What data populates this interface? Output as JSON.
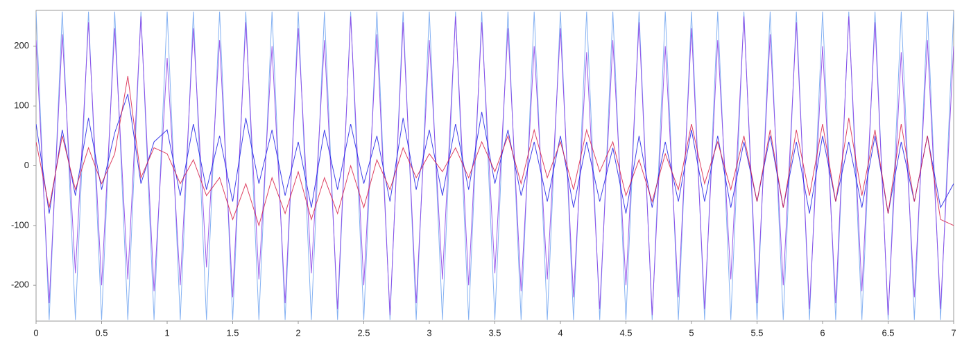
{
  "chart_data": {
    "type": "line",
    "x": [
      0,
      0.1,
      0.2,
      0.3,
      0.4,
      0.5,
      0.6,
      0.7,
      0.8,
      0.9,
      1,
      1.1,
      1.2,
      1.3,
      1.4,
      1.5,
      1.6,
      1.7,
      1.8,
      1.9,
      2,
      2.1,
      2.2,
      2.3,
      2.4,
      2.5,
      2.6,
      2.7,
      2.8,
      2.9,
      3,
      3.1,
      3.2,
      3.3,
      3.4,
      3.5,
      3.6,
      3.7,
      3.8,
      3.9,
      4,
      4.1,
      4.2,
      4.3,
      4.4,
      4.5,
      4.6,
      4.7,
      4.8,
      4.9,
      5,
      5.1,
      5.2,
      5.3,
      5.4,
      5.5,
      5.6,
      5.7,
      5.8,
      5.9,
      6,
      6.1,
      6.2,
      6.3,
      6.4,
      6.5,
      6.6,
      6.7,
      6.8,
      6.9,
      7
    ],
    "series": [
      {
        "color": "#6fa3f0",
        "values": [
          258,
          -258,
          258,
          -258,
          258,
          -258,
          258,
          -258,
          258,
          -258,
          258,
          -258,
          258,
          -258,
          258,
          -258,
          258,
          -258,
          258,
          -258,
          258,
          -258,
          258,
          -258,
          258,
          -258,
          258,
          -258,
          258,
          -258,
          258,
          -258,
          258,
          -258,
          258,
          -258,
          258,
          -258,
          258,
          -258,
          258,
          -258,
          258,
          -258,
          258,
          -258,
          258,
          -258,
          258,
          -258,
          258,
          -258,
          258,
          -258,
          258,
          -258,
          258,
          -258,
          258,
          -258,
          258,
          -258,
          258,
          -258,
          258,
          -258,
          258,
          -258,
          258,
          -258,
          258
        ]
      },
      {
        "color": "#8a3ce6",
        "values": [
          210,
          -230,
          220,
          -180,
          240,
          -200,
          230,
          -190,
          250,
          -210,
          180,
          -200,
          230,
          -170,
          210,
          -220,
          240,
          -190,
          200,
          -230,
          230,
          -180,
          210,
          -240,
          250,
          -200,
          220,
          -250,
          240,
          -230,
          210,
          -190,
          250,
          -200,
          240,
          -180,
          230,
          -210,
          200,
          -190,
          230,
          -220,
          190,
          -240,
          210,
          -200,
          240,
          -250,
          200,
          -220,
          230,
          -240,
          210,
          -190,
          250,
          -230,
          220,
          -200,
          240,
          -240,
          200,
          -230,
          250,
          -210,
          240,
          -250,
          190,
          -220,
          210,
          -240,
          200
        ]
      },
      {
        "color": "#1e1ee6",
        "values": [
          70,
          -80,
          60,
          -50,
          80,
          -40,
          55,
          120,
          -30,
          40,
          60,
          -50,
          70,
          -40,
          50,
          -60,
          80,
          -30,
          60,
          -50,
          40,
          -70,
          60,
          -40,
          70,
          -30,
          50,
          -60,
          80,
          -40,
          60,
          -50,
          70,
          -40,
          90,
          -30,
          60,
          -50,
          40,
          -60,
          50,
          -70,
          40,
          -60,
          30,
          -80,
          50,
          -70,
          40,
          -60,
          60,
          -60,
          50,
          -70,
          40,
          -60,
          50,
          -70,
          40,
          -80,
          50,
          -60,
          40,
          -70,
          50,
          -80,
          40,
          -60,
          50,
          -70,
          -30
        ]
      },
      {
        "color": "#d81e46",
        "values": [
          40,
          -70,
          50,
          -40,
          30,
          -30,
          20,
          150,
          -20,
          30,
          20,
          -30,
          10,
          -50,
          -20,
          -90,
          -30,
          -100,
          -20,
          -80,
          -10,
          -90,
          -20,
          -80,
          0,
          -70,
          10,
          -40,
          30,
          -20,
          20,
          -10,
          30,
          -20,
          40,
          -10,
          50,
          -30,
          60,
          -20,
          40,
          -40,
          60,
          -10,
          40,
          -50,
          10,
          -60,
          20,
          -40,
          70,
          -30,
          40,
          -40,
          50,
          -60,
          60,
          -70,
          60,
          -50,
          70,
          -60,
          80,
          -50,
          60,
          -80,
          70,
          -60,
          50,
          -90,
          -100
        ]
      }
    ],
    "xlim": [
      0,
      7
    ],
    "xticks": [
      0,
      0.5,
      1,
      1.5,
      2,
      2.5,
      3,
      3.5,
      4,
      4.5,
      5,
      5.5,
      6,
      6.5,
      7
    ],
    "ylim": [
      -260,
      260
    ],
    "yticks": [
      -200,
      -100,
      0,
      100,
      200
    ]
  }
}
